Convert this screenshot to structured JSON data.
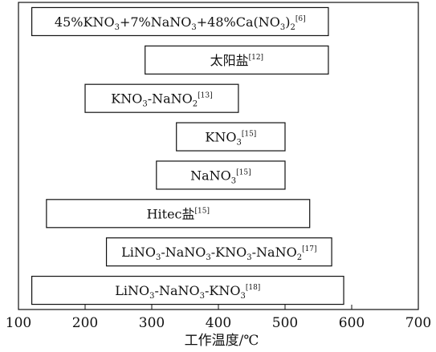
{
  "chart_data": {
    "type": "range-bar",
    "xlabel": "工作温度/℃",
    "xlim": [
      100,
      700
    ],
    "xticks": [
      100,
      200,
      300,
      400,
      500,
      600,
      700
    ],
    "grid": false,
    "bars": [
      {
        "parts": [
          {
            "t": "45%KNO"
          },
          {
            "t": "3",
            "s": "sub"
          },
          {
            "t": "+7%NaNO"
          },
          {
            "t": "3",
            "s": "sub"
          },
          {
            "t": "+48%Ca(NO"
          },
          {
            "t": "3",
            "s": "sub"
          },
          {
            "t": ")"
          },
          {
            "t": "2",
            "s": "sub"
          },
          {
            "t": "[6]",
            "s": "sup"
          }
        ],
        "min": 120,
        "max": 565
      },
      {
        "parts": [
          {
            "t": "太阳盐"
          },
          {
            "t": "[12]",
            "s": "sup"
          }
        ],
        "min": 290,
        "max": 565
      },
      {
        "parts": [
          {
            "t": "KNO"
          },
          {
            "t": "3",
            "s": "sub"
          },
          {
            "t": "-NaNO"
          },
          {
            "t": "2",
            "s": "sub"
          },
          {
            "t": "[13]",
            "s": "sup"
          }
        ],
        "min": 200,
        "max": 430
      },
      {
        "parts": [
          {
            "t": "KNO"
          },
          {
            "t": "3",
            "s": "sub"
          },
          {
            "t": "[15]",
            "s": "sup"
          }
        ],
        "min": 337,
        "max": 500
      },
      {
        "parts": [
          {
            "t": "NaNO"
          },
          {
            "t": "3",
            "s": "sub"
          },
          {
            "t": "[15]",
            "s": "sup"
          }
        ],
        "min": 307,
        "max": 500
      },
      {
        "parts": [
          {
            "t": "Hitec盐"
          },
          {
            "t": "[15]",
            "s": "sup"
          }
        ],
        "min": 142,
        "max": 537
      },
      {
        "parts": [
          {
            "t": "LiNO"
          },
          {
            "t": "3",
            "s": "sub"
          },
          {
            "t": "-NaNO"
          },
          {
            "t": "3",
            "s": "sub"
          },
          {
            "t": "-KNO"
          },
          {
            "t": "3",
            "s": "sub"
          },
          {
            "t": "-NaNO"
          },
          {
            "t": "2",
            "s": "sub"
          },
          {
            "t": "[17]",
            "s": "sup"
          }
        ],
        "min": 232,
        "max": 570
      },
      {
        "parts": [
          {
            "t": "LiNO"
          },
          {
            "t": "3",
            "s": "sub"
          },
          {
            "t": "-NaNO"
          },
          {
            "t": "3",
            "s": "sub"
          },
          {
            "t": "-KNO"
          },
          {
            "t": "3",
            "s": "sub"
          },
          {
            "t": "[18]",
            "s": "sup"
          }
        ],
        "min": 120,
        "max": 588
      }
    ]
  },
  "colors": {
    "frame": "#111111",
    "bar_fill": "#ffffff",
    "bar_stroke": "#111111",
    "text": "#111111"
  }
}
